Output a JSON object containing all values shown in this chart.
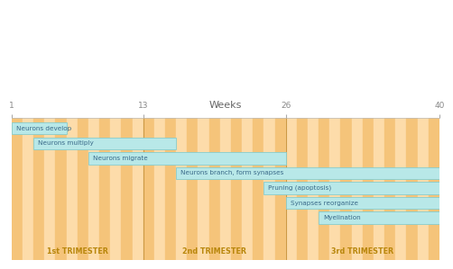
{
  "title": "Weeks",
  "x_min": 1,
  "x_max": 40,
  "week_ticks": [
    1,
    13,
    26,
    40
  ],
  "bar_color": "#B8E8E8",
  "bar_border_color": "#88CCCC",
  "trimester_lines": [
    13,
    26
  ],
  "trimester_labels": [
    "1st TRIMESTER",
    "2nd TRIMESTER",
    "3rd TRIMESTER"
  ],
  "trimester_centers": [
    7,
    19.5,
    33
  ],
  "bars": [
    {
      "label": "Neurons develop",
      "start": 1,
      "end": 6
    },
    {
      "label": "Neurons multiply",
      "start": 3,
      "end": 16
    },
    {
      "label": "Neurons migrate",
      "start": 8,
      "end": 26
    },
    {
      "label": "Neurons branch, form synapses",
      "start": 16,
      "end": 40
    },
    {
      "label": "Pruning (apoptosis)",
      "start": 24,
      "end": 40
    },
    {
      "label": "Synapses reorganize",
      "start": 26,
      "end": 40
    },
    {
      "label": "Myelination",
      "start": 29,
      "end": 40
    }
  ],
  "stripe_light": "#FDDCAA",
  "stripe_dark": "#F5C47A",
  "chart_bg": "#FDDCAA",
  "top_bg": "#FFFFFF",
  "fig_bg": "#FFFFFF",
  "trimester_label_color": "#B8860B",
  "tick_color": "#888888",
  "weeks_label_color": "#666666",
  "bar_text_color": "#3A6A8A"
}
